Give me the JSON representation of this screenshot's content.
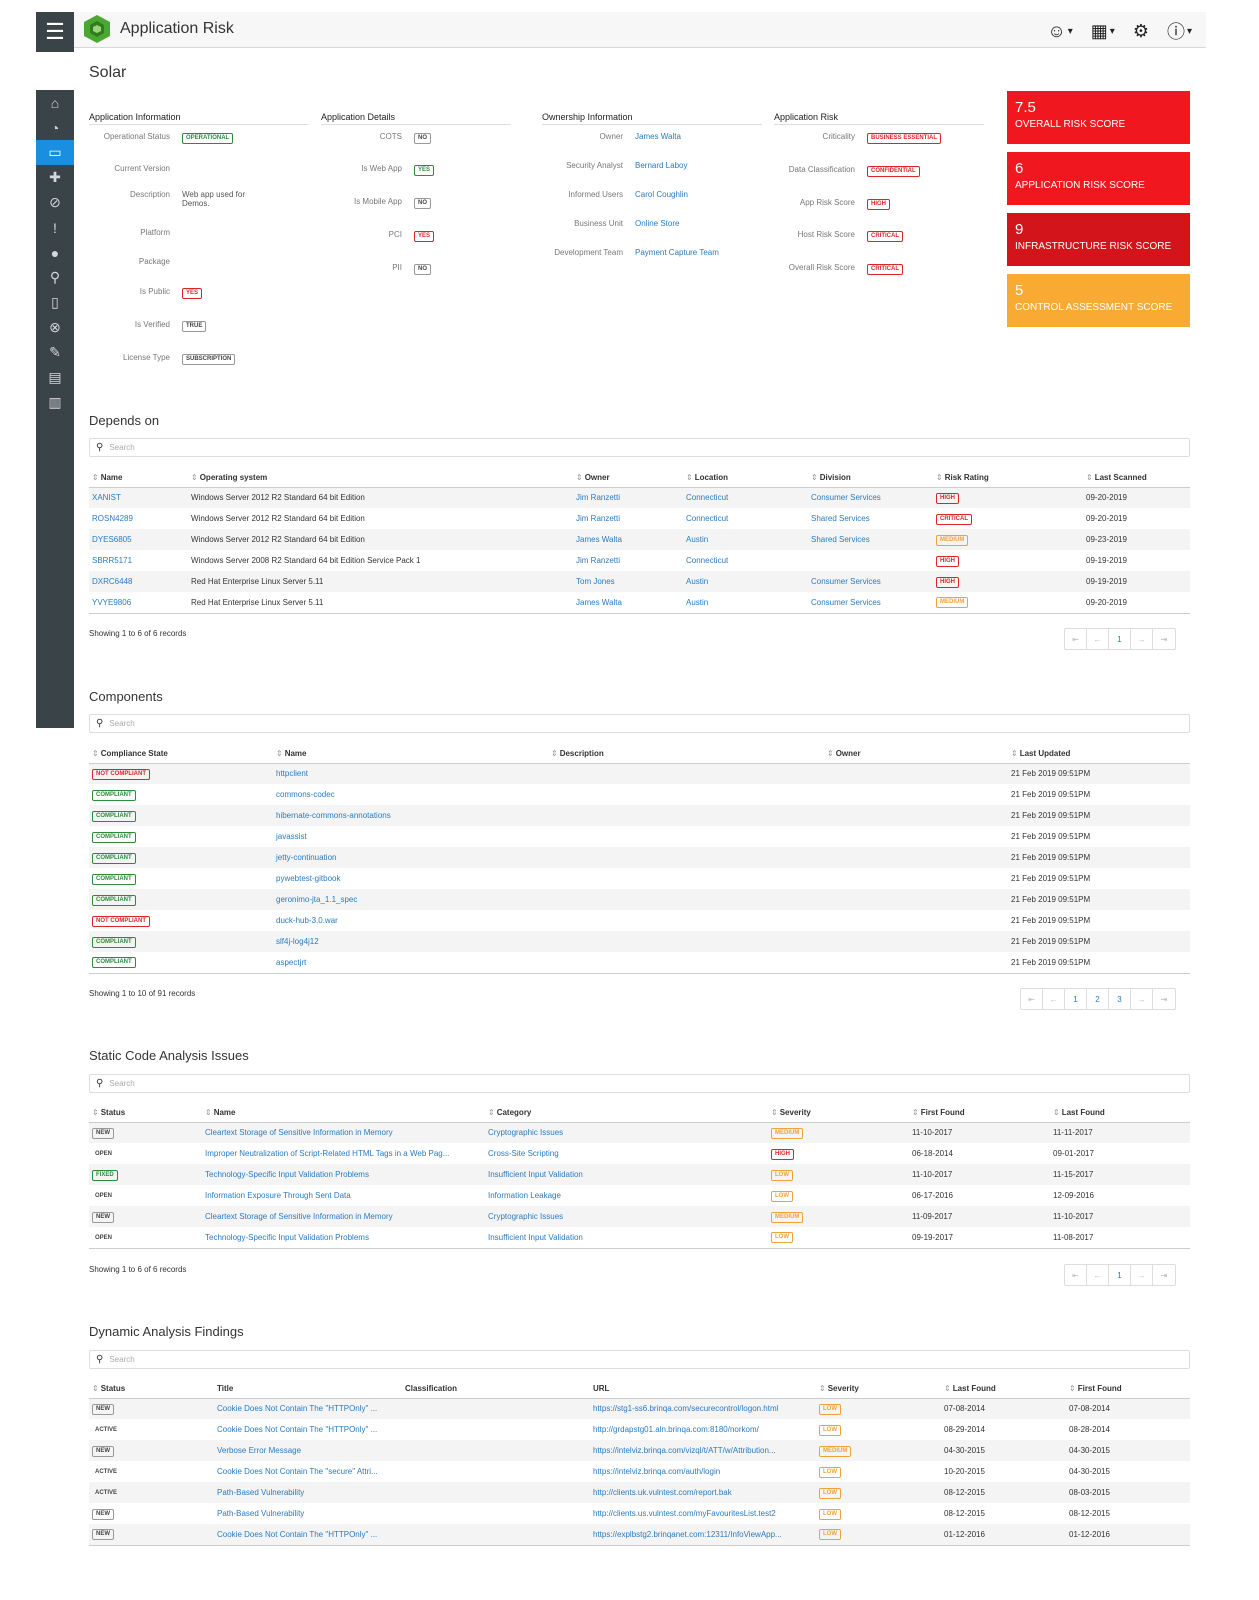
{
  "header": {
    "app_title": "Application Risk",
    "icons": [
      "user-circle-icon",
      "grid-icon",
      "gear-icon",
      "help-icon"
    ]
  },
  "page_title": "Solar",
  "sidebar": {
    "icons": [
      "home-icon",
      "dashboard-icon",
      "monitor-icon",
      "puzzle-icon",
      "ban-icon",
      "exclamation-icon",
      "info-icon",
      "search-icon",
      "mobile-icon",
      "close-circle-icon",
      "pencil-icon",
      "server-icon",
      "bar-chart-icon"
    ],
    "active_index": 2
  },
  "app_info": {
    "title": "Application Information",
    "rows": [
      {
        "label": "Operational Status",
        "value": "OPERATIONAL",
        "type": "badge",
        "color": "green"
      },
      {
        "label": "Current Version",
        "value": "",
        "type": "text"
      },
      {
        "label": "Description",
        "value": "Web app used for Demos.",
        "type": "text"
      },
      {
        "label": "Platform",
        "value": "",
        "type": "text"
      },
      {
        "label": "Package",
        "value": "",
        "type": "text"
      },
      {
        "label": "Is Public",
        "value": "YES",
        "type": "badge",
        "color": "red"
      },
      {
        "label": "Is Verified",
        "value": "TRUE",
        "type": "badge",
        "color": "gray"
      },
      {
        "label": "License Type",
        "value": "SUBSCRIPTION",
        "type": "badge",
        "color": "gray"
      }
    ]
  },
  "app_details": {
    "title": "Application Details",
    "rows": [
      {
        "label": "COTS",
        "value": "NO",
        "color": "gray"
      },
      {
        "label": "Is Web App",
        "value": "YES",
        "color": "green"
      },
      {
        "label": "Is Mobile App",
        "value": "NO",
        "color": "gray"
      },
      {
        "label": "PCI",
        "value": "YES",
        "color": "red"
      },
      {
        "label": "PII",
        "value": "NO",
        "color": "gray"
      }
    ]
  },
  "ownership": {
    "title": "Ownership Information",
    "rows": [
      {
        "label": "Owner",
        "value": "James Walta"
      },
      {
        "label": "Security Analyst",
        "value": "Bernard Laboy"
      },
      {
        "label": "Informed Users",
        "value": "Carol Coughlin"
      },
      {
        "label": "Business Unit",
        "value": "Online Store"
      },
      {
        "label": "Development Team",
        "value": "Payment Capture Team"
      }
    ]
  },
  "app_risk": {
    "title": "Application Risk",
    "rows": [
      {
        "label": "Criticality",
        "value": "BUSINESS ESSENTIAL"
      },
      {
        "label": "Data Classification",
        "value": "CONFIDENTIAL"
      },
      {
        "label": "App Risk Score",
        "value": "HIGH"
      },
      {
        "label": "Host Risk Score",
        "value": "CRITICAL"
      },
      {
        "label": "Overall Risk Score",
        "value": "CRITICAL"
      }
    ]
  },
  "scores": [
    {
      "value": "7.5",
      "label": "OVERALL RISK SCORE",
      "color": "#f0181e"
    },
    {
      "value": "6",
      "label": "APPLICATION RISK SCORE",
      "color": "#f0181e"
    },
    {
      "value": "9",
      "label": "INFRASTRUCTURE RISK SCORE",
      "color": "#d3151b"
    },
    {
      "value": "5",
      "label": "CONTROL ASSESSMENT SCORE",
      "color": "#f9aa33"
    }
  ],
  "search_placeholder": "Search",
  "depends": {
    "title": "Depends on",
    "columns": [
      "Name",
      "Operating system",
      "Owner",
      "Location",
      "Division",
      "Risk Rating",
      "Last Scanned"
    ],
    "rows": [
      {
        "name": "XANIST",
        "os": "Windows Server 2012 R2 Standard 64 bit Edition",
        "owner": "Jim Ranzetti",
        "location": "Connecticut",
        "division": "Consumer Services",
        "risk": "HIGH",
        "risk_color": "red",
        "scanned": "09-20-2019"
      },
      {
        "name": "ROSN4289",
        "os": "Windows Server 2012 R2 Standard 64 bit Edition",
        "owner": "Jim Ranzetti",
        "location": "Connecticut",
        "division": "Shared Services",
        "risk": "CRITICAL",
        "risk_color": "red",
        "scanned": "09-20-2019"
      },
      {
        "name": "DYES6805",
        "os": "Windows Server 2012 R2 Standard 64 bit Edition",
        "owner": "James Walta",
        "location": "Austin",
        "division": "Shared Services",
        "risk": "MEDIUM",
        "risk_color": "orange",
        "scanned": "09-23-2019"
      },
      {
        "name": "SBRR5171",
        "os": "Windows Server 2008 R2 Standard 64 bit Edition Service Pack 1",
        "owner": "Jim Ranzetti",
        "location": "Connecticut",
        "division": "",
        "risk": "HIGH",
        "risk_color": "red",
        "scanned": "09-19-2019"
      },
      {
        "name": "DXRC6448",
        "os": "Red Hat Enterprise Linux Server 5.11",
        "owner": "Tom Jones",
        "location": "Austin",
        "division": "Consumer Services",
        "risk": "HIGH",
        "risk_color": "red",
        "scanned": "09-19-2019"
      },
      {
        "name": "YVYE9806",
        "os": "Red Hat Enterprise Linux Server 5.11",
        "owner": "James Walta",
        "location": "Austin",
        "division": "Consumer Services",
        "risk": "MEDIUM",
        "risk_color": "orange",
        "scanned": "09-20-2019"
      }
    ],
    "showing": "Showing 1 to 6 of 6 records",
    "pages": [
      "⇤",
      "←",
      "1",
      "→",
      "⇥"
    ]
  },
  "components": {
    "title": "Components",
    "columns": [
      "Compliance State",
      "Name",
      "Description",
      "Owner",
      "Last Updated"
    ],
    "rows": [
      {
        "state": "NOT COMPLIANT",
        "color": "red",
        "name": "httpclient",
        "updated": "21 Feb 2019 09:51PM"
      },
      {
        "state": "COMPLIANT",
        "color": "green",
        "name": "commons-codec",
        "updated": "21 Feb 2019 09:51PM"
      },
      {
        "state": "COMPLIANT",
        "color": "green",
        "name": "hibernate-commons-annotations",
        "updated": "21 Feb 2019 09:51PM"
      },
      {
        "state": "COMPLIANT",
        "color": "green",
        "name": "javassist",
        "updated": "21 Feb 2019 09:51PM"
      },
      {
        "state": "COMPLIANT",
        "color": "green",
        "name": "jetty-continuation",
        "updated": "21 Feb 2019 09:51PM"
      },
      {
        "state": "COMPLIANT",
        "color": "green",
        "name": "pywebtest-gitbook",
        "updated": "21 Feb 2019 09:51PM"
      },
      {
        "state": "COMPLIANT",
        "color": "green",
        "name": "geronimo-jta_1.1_spec",
        "updated": "21 Feb 2019 09:51PM"
      },
      {
        "state": "NOT COMPLIANT",
        "color": "red",
        "name": "duck-hub-3.0.war",
        "updated": "21 Feb 2019 09:51PM"
      },
      {
        "state": "COMPLIANT",
        "color": "green",
        "name": "slf4j-log4j12",
        "updated": "21 Feb 2019 09:51PM"
      },
      {
        "state": "COMPLIANT",
        "color": "green",
        "name": "aspectjrt",
        "updated": "21 Feb 2019 09:51PM"
      }
    ],
    "showing": "Showing 1 to 10 of 91 records",
    "pages": [
      "⇤",
      "←",
      "1",
      "2",
      "3",
      "→",
      "⇥"
    ]
  },
  "static": {
    "title": "Static Code Analysis Issues",
    "columns": [
      "Status",
      "Name",
      "Category",
      "Severity",
      "First Found",
      "Last Found"
    ],
    "rows": [
      {
        "status": "NEW",
        "status_color": "gray",
        "name": "Cleartext Storage of Sensitive Information in Memory",
        "category": "Cryptographic Issues",
        "severity": "MEDIUM",
        "sev_color": "orange",
        "first": "11-10-2017",
        "last": "11-11-2017"
      },
      {
        "status": "OPEN",
        "status_color": "open",
        "name": "Improper Neutralization of Script-Related HTML Tags in a Web Pag...",
        "category": "Cross-Site Scripting",
        "severity": "HIGH",
        "sev_color": "red",
        "first": "06-18-2014",
        "last": "09-01-2017"
      },
      {
        "status": "FIXED",
        "status_color": "green",
        "name": "Technology-Specific Input Validation Problems",
        "category": "Insufficient Input Validation",
        "severity": "LOW",
        "sev_color": "orange",
        "first": "11-10-2017",
        "last": "11-15-2017"
      },
      {
        "status": "OPEN",
        "status_color": "open",
        "name": "Information Exposure Through Sent Data",
        "category": "Information Leakage",
        "severity": "LOW",
        "sev_color": "orange",
        "first": "06-17-2016",
        "last": "12-09-2016"
      },
      {
        "status": "NEW",
        "status_color": "gray",
        "name": "Cleartext Storage of Sensitive Information in Memory",
        "category": "Cryptographic Issues",
        "severity": "MEDIUM",
        "sev_color": "orange",
        "first": "11-09-2017",
        "last": "11-10-2017"
      },
      {
        "status": "OPEN",
        "status_color": "open",
        "name": "Technology-Specific Input Validation Problems",
        "category": "Insufficient Input Validation",
        "severity": "LOW",
        "sev_color": "orange",
        "first": "09-19-2017",
        "last": "11-08-2017"
      }
    ],
    "showing": "Showing 1 to 6 of 6 records",
    "pages": [
      "⇤",
      "←",
      "1",
      "→",
      "⇥"
    ]
  },
  "dynamic": {
    "title": "Dynamic Analysis Findings",
    "columns": [
      "Status",
      "Title",
      "Classification",
      "URL",
      "Severity",
      "Last Found",
      "First Found"
    ],
    "rows": [
      {
        "status": "NEW",
        "status_color": "gray",
        "title": "Cookie Does Not Contain The \"HTTPOnly\" ...",
        "url": "https://stg1-ss6.brinqa.com/securecontrol/logon.html",
        "severity": "LOW",
        "sev_color": "orange",
        "last": "07-08-2014",
        "first": "07-08-2014"
      },
      {
        "status": "ACTIVE",
        "status_color": "open",
        "title": "Cookie Does Not Contain The \"HTTPOnly\" ...",
        "url": "http://grdapstg01.aln.brinqa.com:8180/norkom/",
        "severity": "LOW",
        "sev_color": "orange",
        "last": "08-29-2014",
        "first": "08-28-2014"
      },
      {
        "status": "NEW",
        "status_color": "gray",
        "title": "Verbose Error Message",
        "url": "https://intelviz.brinqa.com/vizql/t/ATT/w/Attribution...",
        "severity": "MEDIUM",
        "sev_color": "orange",
        "last": "04-30-2015",
        "first": "04-30-2015"
      },
      {
        "status": "ACTIVE",
        "status_color": "open",
        "title": "Cookie Does Not Contain The \"secure\" Attri...",
        "url": "https://intelviz.brinqa.com/auth/login",
        "severity": "LOW",
        "sev_color": "orange",
        "last": "10-20-2015",
        "first": "04-30-2015"
      },
      {
        "status": "ACTIVE",
        "status_color": "open",
        "title": "Path-Based Vulnerability",
        "url": "http://clients.uk.vulntest.com/report.bak",
        "severity": "LOW",
        "sev_color": "orange",
        "last": "08-12-2015",
        "first": "08-03-2015"
      },
      {
        "status": "NEW",
        "status_color": "gray",
        "title": "Path-Based Vulnerability",
        "url": "http://clients.us.vulntest.com/myFavouritesList.test2",
        "severity": "LOW",
        "sev_color": "orange",
        "last": "08-12-2015",
        "first": "08-12-2015"
      },
      {
        "status": "NEW",
        "status_color": "gray",
        "title": "Cookie Does Not Contain The \"HTTPOnly\" ...",
        "url": "https://explbstg2.brinqanet.com:12311/InfoViewApp...",
        "severity": "LOW",
        "sev_color": "orange",
        "last": "01-12-2016",
        "first": "01-12-2016"
      }
    ]
  }
}
